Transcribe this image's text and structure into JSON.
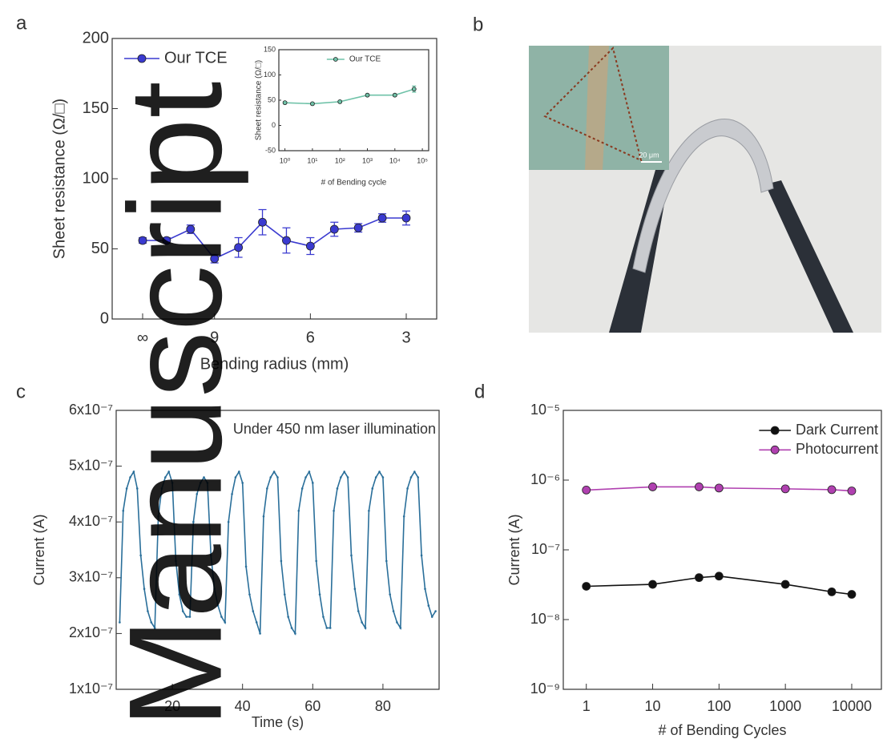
{
  "watermark": "Manuscript",
  "photo": {
    "panel": "b",
    "scale_label": "20 μm"
  },
  "chart_data": [
    {
      "type": "line",
      "panel": "a",
      "xlabel": "Bending radius (mm)",
      "ylabel": "Sheet resistance (Ω/□)",
      "categories": [
        "∞",
        null,
        null,
        "9",
        null,
        null,
        null,
        "6",
        null,
        null,
        null,
        "3"
      ],
      "series": [
        {
          "name": "Our TCE",
          "color": "#3a3ad0",
          "values": [
            56,
            56,
            64,
            43,
            51,
            69,
            56,
            52,
            64,
            65,
            72,
            72
          ],
          "errors": [
            2,
            2,
            3,
            3,
            7,
            9,
            9,
            6,
            5,
            3,
            3,
            5
          ]
        }
      ],
      "ylim": [
        0,
        200
      ],
      "yticks": [
        0,
        50,
        100,
        150,
        200
      ],
      "legend": "upper left"
    },
    {
      "type": "line",
      "xlabel": "# of Bending cycle",
      "ylabel": "Sheet resistance (Ω/□)",
      "x": [
        1,
        10,
        100,
        1000,
        10000,
        50000
      ],
      "xscale": "log",
      "series": [
        {
          "name": "Our TCE",
          "color": "#6fc2a8",
          "values": [
            45,
            43,
            47,
            60,
            60,
            72
          ],
          "errors": [
            2,
            2,
            2,
            2,
            2,
            6
          ]
        }
      ],
      "xlim": [
        0.6,
        170000
      ],
      "xticks": [
        {
          "value": 1,
          "label": "10⁰"
        },
        {
          "value": 10,
          "label": "10¹"
        },
        {
          "value": 100,
          "label": "10²"
        },
        {
          "value": 1000,
          "label": "10³"
        },
        {
          "value": 10000,
          "label": "10⁴"
        },
        {
          "value": 100000,
          "label": "10⁵"
        }
      ],
      "ylim": [
        -50,
        150
      ],
      "yticks": [
        -50,
        0,
        50,
        100,
        150
      ],
      "legend": "upper center"
    },
    {
      "type": "line",
      "panel": "c",
      "xlabel": "Time (s)",
      "ylabel": "Current (A)",
      "annotation": "Under 450 nm laser illumination",
      "color": "#2a6f9a",
      "x": [
        5,
        6,
        7,
        8,
        9,
        10,
        11,
        12,
        13,
        14,
        15,
        16,
        17,
        18,
        19,
        20,
        21,
        22,
        23,
        24,
        25,
        26,
        27,
        28,
        29,
        30,
        31,
        32,
        33,
        34,
        35,
        36,
        37,
        38,
        39,
        40,
        41,
        42,
        43,
        44,
        45,
        46,
        47,
        48,
        49,
        50,
        51,
        52,
        53,
        54,
        55,
        56,
        57,
        58,
        59,
        60,
        61,
        62,
        63,
        64,
        65,
        66,
        67,
        68,
        69,
        70,
        71,
        72,
        73,
        74,
        75,
        76,
        77,
        78,
        79,
        80,
        81,
        82,
        83,
        84,
        85,
        86,
        87,
        88,
        89,
        90,
        91,
        92,
        93,
        94,
        95
      ],
      "values": [
        2.2e-07,
        4.2e-07,
        4.6e-07,
        4.8e-07,
        4.9e-07,
        4.6e-07,
        3.4e-07,
        2.8e-07,
        2.4e-07,
        2.2e-07,
        2.1e-07,
        4.1e-07,
        4.6e-07,
        4.8e-07,
        4.9e-07,
        4.7e-07,
        3.3e-07,
        2.7e-07,
        2.4e-07,
        2.3e-07,
        2.3e-07,
        4e-07,
        4.5e-07,
        4.7e-07,
        4.8e-07,
        4.7e-07,
        3.4e-07,
        2.8e-07,
        2.5e-07,
        2.3e-07,
        2.2e-07,
        4e-07,
        4.5e-07,
        4.8e-07,
        4.9e-07,
        4.7e-07,
        3.2e-07,
        2.7e-07,
        2.4e-07,
        2.2e-07,
        2e-07,
        4.1e-07,
        4.6e-07,
        4.8e-07,
        4.9e-07,
        4.8e-07,
        3.3e-07,
        2.7e-07,
        2.3e-07,
        2.1e-07,
        2e-07,
        4.2e-07,
        4.6e-07,
        4.8e-07,
        4.9e-07,
        4.7e-07,
        3.3e-07,
        2.7e-07,
        2.3e-07,
        2.1e-07,
        2.1e-07,
        4.2e-07,
        4.6e-07,
        4.8e-07,
        4.9e-07,
        4.8e-07,
        3.4e-07,
        2.8e-07,
        2.4e-07,
        2.2e-07,
        2.1e-07,
        4.2e-07,
        4.6e-07,
        4.8e-07,
        4.9e-07,
        4.8e-07,
        3.3e-07,
        2.7e-07,
        2.4e-07,
        2.2e-07,
        2.1e-07,
        4.1e-07,
        4.6e-07,
        4.8e-07,
        4.9e-07,
        4.8e-07,
        3.4e-07,
        2.8e-07,
        2.5e-07,
        2.3e-07,
        2.4e-07
      ],
      "xlim": [
        4,
        96
      ],
      "xticks": [
        20,
        40,
        60,
        80
      ],
      "ylim": [
        1e-07,
        6e-07
      ],
      "yticks": [
        {
          "value": 1e-07,
          "label": "1x10⁻⁷"
        },
        {
          "value": 2e-07,
          "label": "2x10⁻⁷"
        },
        {
          "value": 3e-07,
          "label": "3x10⁻⁷"
        },
        {
          "value": 4e-07,
          "label": "4x10⁻⁷"
        },
        {
          "value": 5e-07,
          "label": "5x10⁻⁷"
        },
        {
          "value": 6e-07,
          "label": "6x10⁻⁷"
        }
      ]
    },
    {
      "type": "line",
      "panel": "d",
      "xlabel": "# of Bending Cycles",
      "ylabel": "Current (A)",
      "x": [
        1,
        10,
        50,
        100,
        1000,
        5000,
        10000
      ],
      "xscale": "log",
      "yscale": "log",
      "series": [
        {
          "name": "Dark Current",
          "color": "#111111",
          "values": [
            3e-08,
            3.2e-08,
            4e-08,
            4.2e-08,
            3.2e-08,
            2.5e-08,
            2.3e-08
          ]
        },
        {
          "name": "Photocurrent",
          "color": "#b040b0",
          "values": [
            7.2e-07,
            8e-07,
            8e-07,
            7.7e-07,
            7.5e-07,
            7.3e-07,
            7e-07
          ]
        }
      ],
      "xlim": [
        0.45,
        28000
      ],
      "xticks": [
        1,
        10,
        100,
        1000,
        10000
      ],
      "ylim": [
        1e-09,
        1e-05
      ],
      "yticks": [
        {
          "value": 1e-09,
          "label": "10⁻⁹"
        },
        {
          "value": 1e-08,
          "label": "10⁻⁸"
        },
        {
          "value": 1e-07,
          "label": "10⁻⁷"
        },
        {
          "value": 1e-06,
          "label": "10⁻⁶"
        },
        {
          "value": 1e-05,
          "label": "10⁻⁵"
        }
      ],
      "legend": "upper right"
    }
  ]
}
